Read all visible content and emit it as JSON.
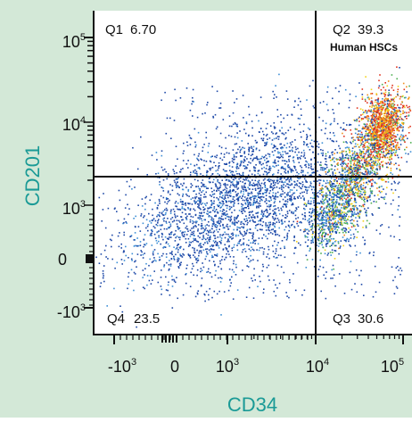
{
  "background_color": "#d3e8d7",
  "accent_color": "#1a9a96",
  "chart_data": {
    "type": "scatter",
    "subtype": "flow-cytometry-density-dot-plot",
    "title": "",
    "xlabel": "CD34",
    "ylabel": "CD201",
    "x_ticks": [
      {
        "base": "-10",
        "exp": "3"
      },
      {
        "base": "0",
        "exp": ""
      },
      {
        "base": "10",
        "exp": "3"
      },
      {
        "base": "10",
        "exp": "4"
      },
      {
        "base": "10",
        "exp": "5"
      }
    ],
    "y_ticks": [
      {
        "base": "10",
        "exp": "5"
      },
      {
        "base": "10",
        "exp": "4"
      },
      {
        "base": "10",
        "exp": "3"
      },
      {
        "base": "0",
        "exp": ""
      },
      {
        "base": "-10",
        "exp": "3"
      }
    ],
    "scale": "biexponential",
    "gates": {
      "x": 10000,
      "y": 2000
    },
    "quadrants": [
      {
        "id": "Q1",
        "label": "Q1",
        "value": "6.70",
        "position": "top-left"
      },
      {
        "id": "Q2",
        "label": "Q2",
        "value": "39.3",
        "position": "top-right",
        "annotation": "Human HSCs"
      },
      {
        "id": "Q3",
        "label": "Q3",
        "value": "30.6",
        "position": "bottom-right"
      },
      {
        "id": "Q4",
        "label": "Q4",
        "value": "23.5",
        "position": "bottom-left"
      }
    ],
    "density_colors": [
      "#1f4aa8",
      "#3d8fd6",
      "#4caf50",
      "#f2d21b",
      "#f08c1e",
      "#e0321e"
    ],
    "grid": false,
    "legend": "none"
  }
}
